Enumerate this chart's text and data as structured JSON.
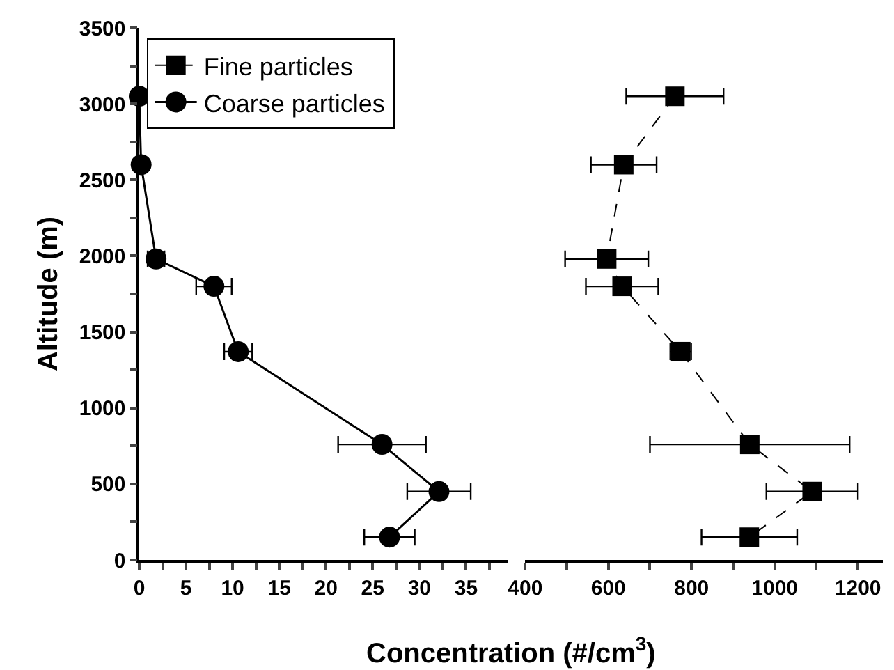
{
  "chart_data": [
    {
      "type": "line",
      "xlabel": "Concentration (#/cm$^{3}$)",
      "ylabel": "Altitude (m)",
      "legend": "top left",
      "xlim": [
        0,
        39.5
      ],
      "xticks": [
        0,
        {
          "value": 2.5,
          "label": null
        },
        5,
        {
          "value": 7.5,
          "label": null
        },
        10,
        {
          "value": 12.5,
          "label": null
        },
        15,
        {
          "value": 17.5,
          "label": null
        },
        20,
        {
          "value": 22.5,
          "label": null
        },
        25,
        {
          "value": 27.5,
          "label": null
        },
        30,
        {
          "value": 32.5,
          "label": null
        },
        35,
        {
          "value": 37.5,
          "label": null
        }
      ],
      "ylim": [
        0,
        3500
      ],
      "yticks": [
        0,
        {
          "value": 250,
          "label": null
        },
        500,
        {
          "value": 750,
          "label": null
        },
        1000,
        {
          "value": 1250,
          "label": null
        },
        1500,
        {
          "value": 1750,
          "label": null
        },
        2000,
        {
          "value": 2250,
          "label": null
        },
        2500,
        {
          "value": 2750,
          "label": null
        },
        3000,
        {
          "value": 3250,
          "label": null
        },
        3500
      ],
      "series": [
        {
          "name": "Coarse particles",
          "color": "#000000",
          "marker": "circle",
          "line_style": "solid",
          "x": [
            0,
            0.2,
            1.8,
            8,
            10.6,
            26,
            32.1,
            26.8
          ],
          "values": [
            3050,
            2600,
            1980,
            1800,
            1370,
            760,
            450,
            150
          ],
          "xerrors": [
            null,
            null,
            0.9,
            1.9,
            1.5,
            4.7,
            3.4,
            2.7
          ]
        }
      ]
    },
    {
      "type": "line",
      "tick_labels": "x",
      "xlim": [
        400,
        1260
      ],
      "xticks": [
        400,
        {
          "value": 500,
          "label": null
        },
        600,
        {
          "value": 700,
          "label": null
        },
        800,
        {
          "value": 900,
          "label": null
        },
        1000,
        {
          "value": 1100,
          "label": null
        },
        1200
      ],
      "ylim": [
        0,
        3500
      ],
      "series": [
        {
          "name": "Fine particles",
          "color": "#000000",
          "marker": "square",
          "line_style": "dashed",
          "x": [
            760,
            637,
            596,
            633,
            774,
            940,
            1090,
            939
          ],
          "values": [
            3050,
            2600,
            1980,
            1800,
            1370,
            760,
            450,
            150
          ],
          "xerrors": [
            117,
            79,
            100,
            87,
            25,
            240,
            110,
            115
          ]
        }
      ]
    }
  ]
}
